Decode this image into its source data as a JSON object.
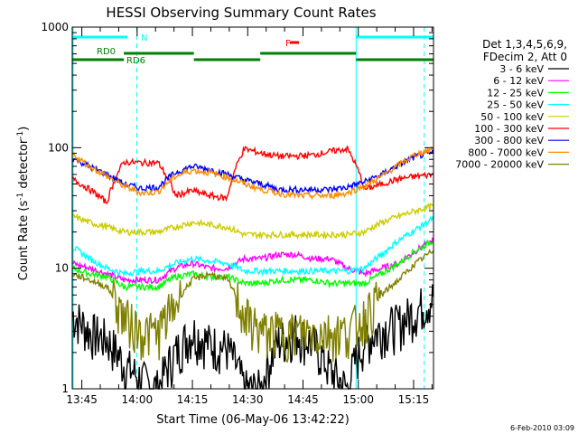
{
  "chart_data": {
    "type": "line",
    "title": "HESSI Observing Summary Count Rates",
    "xlabel": "Start Time (06-May-06 13:42:22)",
    "ylabel_main": "Count Rate (s",
    "ylabel_sup1": "-1",
    "ylabel_mid": " detector",
    "ylabel_sup2": "-1",
    "ylabel_end": ")",
    "yscale": "log",
    "ylim": [
      1,
      1000
    ],
    "xlim_minutes": [
      0,
      98
    ],
    "x_tick_labels": [
      "13:45",
      "14:00",
      "14:15",
      "14:30",
      "14:45",
      "15:00",
      "15:15"
    ],
    "x_tick_minutes": [
      2.6,
      17.6,
      32.6,
      47.6,
      62.6,
      77.6,
      92.6
    ],
    "y_tick_labels": [
      "1",
      "10",
      "100",
      "1000"
    ],
    "y_tick_values": [
      1,
      10,
      100,
      1000
    ],
    "legend": {
      "header": [
        "Det 1,3,4,5,6,9,",
        "FDecim 2, Att 0"
      ],
      "position": "right"
    },
    "series": [
      {
        "name": "3 - 6 keV",
        "color": "#000000",
        "values": [
          4.2,
          3.0,
          2.6,
          1.6,
          1.2,
          1.0,
          2.0,
          3.0,
          2.4,
          2.2,
          1.0,
          1.0,
          2.5,
          3.0,
          2.4,
          1.4,
          1.0,
          2.5,
          3.2,
          3.5,
          4.5,
          5.8
        ]
      },
      {
        "name": "6 - 12 keV",
        "color": "#ff00ff",
        "values": [
          11,
          10,
          9,
          8,
          8,
          8,
          10,
          11,
          10,
          10,
          12,
          12,
          13,
          13,
          12,
          12,
          10,
          9,
          10,
          11,
          14,
          17
        ]
      },
      {
        "name": "12 - 25 keV",
        "color": "#00ff00",
        "values": [
          10,
          9,
          8.5,
          7,
          7,
          7,
          8.5,
          9,
          8.5,
          8.5,
          7.5,
          7.5,
          8,
          8,
          8,
          7.5,
          7.5,
          7.5,
          9,
          11,
          14,
          17
        ]
      },
      {
        "name": "25 - 50 keV",
        "color": "#00ffff",
        "values": [
          15,
          12,
          10,
          9,
          9.5,
          9.5,
          11,
          12,
          11.5,
          11,
          9.5,
          9.5,
          9.5,
          9.5,
          9.5,
          9.5,
          9.5,
          10,
          13,
          17,
          21,
          26
        ]
      },
      {
        "name": "50 - 100 keV",
        "color": "#cccc00",
        "values": [
          27,
          24,
          22,
          20,
          20,
          20,
          22,
          24,
          23,
          22,
          19,
          19,
          19,
          19,
          19,
          19,
          19,
          20,
          24,
          27,
          30,
          33
        ]
      },
      {
        "name": "100 - 300 keV",
        "color": "#ff0000",
        "values": [
          55,
          45,
          35,
          76,
          75,
          75,
          40,
          44,
          40,
          38,
          98,
          90,
          85,
          85,
          87,
          93,
          98,
          45,
          50,
          55,
          58,
          60
        ]
      },
      {
        "name": "300 - 800 keV",
        "color": "#0000ff",
        "values": [
          82,
          70,
          60,
          50,
          46,
          47,
          62,
          70,
          66,
          60,
          54,
          50,
          45,
          45,
          45,
          45,
          47,
          52,
          60,
          72,
          85,
          90
        ]
      },
      {
        "name": "800 - 7000 keV",
        "color": "#ff8c00",
        "values": [
          88,
          70,
          58,
          48,
          42,
          43,
          58,
          65,
          62,
          57,
          50,
          45,
          42,
          40,
          40,
          40,
          42,
          48,
          58,
          72,
          88,
          98
        ]
      },
      {
        "name": "7000 - 20000 keV",
        "color": "#808000",
        "values": [
          9,
          8,
          7,
          4,
          3,
          3,
          5,
          8,
          9,
          8,
          4,
          3,
          3,
          3,
          3,
          3,
          3,
          4,
          6,
          8,
          11,
          14
        ]
      }
    ],
    "x_minutes": [
      0,
      4.7,
      9.4,
      14,
      18.7,
      23.3,
      28,
      32.6,
      37.3,
      42,
      46.7,
      51.3,
      56,
      60.6,
      65.3,
      70,
      74.6,
      79.3,
      84,
      88.6,
      93.3,
      98
    ],
    "flags": [
      {
        "label": "N",
        "color": "#00ffff",
        "segments": [
          [
            0,
            15
          ],
          [
            77,
            98
          ]
        ]
      },
      {
        "label": "RD0",
        "color": "#008000",
        "segments": [
          [
            14,
            33
          ],
          [
            51,
            77
          ]
        ]
      },
      {
        "label": "RD6",
        "color": "#008000",
        "segments": [
          [
            0,
            14
          ],
          [
            33,
            51
          ],
          [
            77,
            98
          ]
        ]
      },
      {
        "label": "F",
        "color": "#ff0000",
        "segments": [
          [
            59,
            61.5
          ]
        ]
      }
    ],
    "vertical_markers": {
      "solid_minutes": [
        0,
        77
      ],
      "dashed_minutes": [
        17.5,
        95.5
      ],
      "color": "#00ffff"
    }
  },
  "footer": {
    "timestamp": "6-Feb-2010 03:09"
  }
}
